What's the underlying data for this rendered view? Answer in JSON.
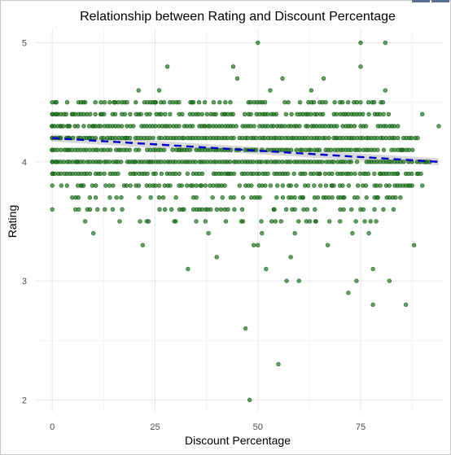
{
  "chart_data": {
    "type": "scatter",
    "title": "Relationship between Rating and Discount Percentage",
    "xlabel": "Discount Percentage",
    "ylabel": "Rating",
    "xlim": [
      -4,
      95
    ],
    "ylim": [
      1.9,
      5.12
    ],
    "x_ticks": [
      0,
      25,
      50,
      75
    ],
    "y_ticks": [
      2,
      3,
      4,
      5
    ],
    "grid": true,
    "point_color": "#1a7a1a",
    "trend_color": "#0000cc",
    "band_color": "#c8c8c8",
    "trend_line": {
      "x": [
        0,
        94
      ],
      "y": [
        4.2,
        4.0
      ],
      "band_halfwidth_start": 0.03,
      "band_halfwidth_end": 0.03
    },
    "points": [
      [
        0,
        3.6
      ],
      [
        0,
        3.8
      ],
      [
        0,
        3.9
      ],
      [
        0,
        4.0
      ],
      [
        0,
        4.1
      ],
      [
        0,
        4.2
      ],
      [
        0,
        4.3
      ],
      [
        0,
        4.4
      ],
      [
        0,
        4.5
      ],
      [
        1,
        4.5
      ],
      [
        1,
        4.4
      ],
      [
        1,
        4.0
      ],
      [
        2,
        4.2
      ],
      [
        2,
        4.3
      ],
      [
        3,
        4.1
      ],
      [
        4,
        4.3
      ],
      [
        4,
        4.1
      ],
      [
        4,
        4.2
      ],
      [
        5,
        4.4
      ],
      [
        6,
        4.0
      ],
      [
        7,
        3.8
      ],
      [
        8,
        4.5
      ],
      [
        8,
        3.5
      ],
      [
        9,
        4.2
      ],
      [
        10,
        4.3
      ],
      [
        10,
        3.4
      ],
      [
        11,
        3.6
      ],
      [
        12,
        4.1
      ],
      [
        12,
        4.4
      ],
      [
        13,
        3.8
      ],
      [
        14,
        3.7
      ],
      [
        15,
        4.5
      ],
      [
        16,
        3.9
      ],
      [
        17,
        3.6
      ],
      [
        18,
        4.2
      ],
      [
        19,
        3.8
      ],
      [
        20,
        4.0
      ],
      [
        21,
        4.6
      ],
      [
        22,
        3.3
      ],
      [
        23,
        3.5
      ],
      [
        24,
        4.0
      ],
      [
        25,
        4.5
      ],
      [
        26,
        4.6
      ],
      [
        27,
        3.7
      ],
      [
        28,
        4.8
      ],
      [
        29,
        3.6
      ],
      [
        30,
        3.5
      ],
      [
        31,
        4.1
      ],
      [
        32,
        3.6
      ],
      [
        33,
        3.1
      ],
      [
        34,
        4.5
      ],
      [
        35,
        3.5
      ],
      [
        36,
        3.8
      ],
      [
        37,
        4.3
      ],
      [
        38,
        3.4
      ],
      [
        39,
        3.7
      ],
      [
        40,
        3.2
      ],
      [
        41,
        3.6
      ],
      [
        42,
        4.4
      ],
      [
        43,
        3.9
      ],
      [
        44,
        4.8
      ],
      [
        45,
        4.7
      ],
      [
        46,
        3.5
      ],
      [
        47,
        2.6
      ],
      [
        48,
        2.0
      ],
      [
        49,
        3.3
      ],
      [
        50,
        5.0
      ],
      [
        50,
        3.3
      ],
      [
        51,
        3.4
      ],
      [
        52,
        3.1
      ],
      [
        53,
        4.6
      ],
      [
        54,
        3.6
      ],
      [
        55,
        2.3
      ],
      [
        56,
        4.7
      ],
      [
        57,
        3.0
      ],
      [
        58,
        3.2
      ],
      [
        59,
        3.4
      ],
      [
        60,
        3.0
      ],
      [
        61,
        3.7
      ],
      [
        62,
        3.6
      ],
      [
        63,
        4.6
      ],
      [
        64,
        3.5
      ],
      [
        65,
        3.9
      ],
      [
        66,
        4.7
      ],
      [
        67,
        3.3
      ],
      [
        68,
        3.8
      ],
      [
        69,
        4.2
      ],
      [
        70,
        3.5
      ],
      [
        71,
        3.7
      ],
      [
        72,
        2.9
      ],
      [
        73,
        3.4
      ],
      [
        74,
        3.0
      ],
      [
        75,
        5.0
      ],
      [
        75,
        4.8
      ],
      [
        76,
        3.5
      ],
      [
        77,
        3.4
      ],
      [
        78,
        3.1
      ],
      [
        78,
        2.8
      ],
      [
        79,
        3.7
      ],
      [
        80,
        3.9
      ],
      [
        81,
        5.0
      ],
      [
        81,
        4.6
      ],
      [
        82,
        3.0
      ],
      [
        83,
        3.6
      ],
      [
        84,
        3.9
      ],
      [
        85,
        4.1
      ],
      [
        86,
        2.8
      ],
      [
        87,
        3.8
      ],
      [
        88,
        3.3
      ],
      [
        89,
        3.9
      ],
      [
        90,
        4.4
      ],
      [
        90,
        3.8
      ],
      [
        91,
        4.0
      ],
      [
        94,
        4.3
      ]
    ],
    "band_rows": [
      {
        "y": 4.5,
        "from": 0,
        "to": 82,
        "density": 0.55
      },
      {
        "y": 4.4,
        "from": 0,
        "to": 82,
        "density": 0.75
      },
      {
        "y": 4.3,
        "from": 0,
        "to": 85,
        "density": 0.9
      },
      {
        "y": 4.2,
        "from": 0,
        "to": 90,
        "density": 0.9
      },
      {
        "y": 4.1,
        "from": 0,
        "to": 88,
        "density": 0.85
      },
      {
        "y": 4.0,
        "from": 0,
        "to": 92,
        "density": 0.95
      },
      {
        "y": 3.9,
        "from": 0,
        "to": 90,
        "density": 0.75
      },
      {
        "y": 3.8,
        "from": 0,
        "to": 88,
        "density": 0.6
      },
      {
        "y": 3.7,
        "from": 5,
        "to": 85,
        "density": 0.45
      },
      {
        "y": 3.6,
        "from": 5,
        "to": 82,
        "density": 0.35
      },
      {
        "y": 3.5,
        "from": 15,
        "to": 80,
        "density": 0.2
      }
    ]
  }
}
